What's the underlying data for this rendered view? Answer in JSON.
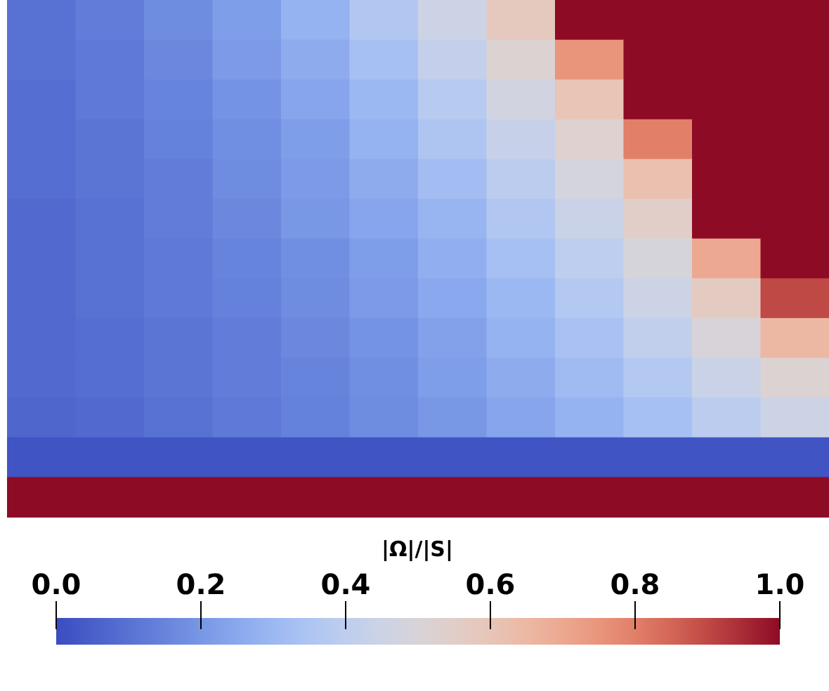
{
  "chart_data": {
    "type": "heatmap",
    "clabel": "|Ω|/|S|",
    "categories": [
      null,
      null,
      null,
      null,
      null,
      null,
      null,
      null,
      null,
      null,
      null,
      null
    ],
    "y_categories": [
      null,
      null,
      null,
      null,
      null,
      null,
      null,
      null,
      null,
      null,
      null,
      null,
      null
    ],
    "cells": [
      [
        0.1,
        0.13,
        0.17,
        0.22,
        0.28,
        0.36,
        0.45,
        0.58,
        1,
        1,
        1,
        1
      ],
      [
        0.1,
        0.12,
        0.16,
        0.21,
        0.26,
        0.33,
        0.42,
        0.52,
        0.75,
        1,
        1,
        1
      ],
      [
        0.09,
        0.12,
        0.15,
        0.19,
        0.24,
        0.3,
        0.38,
        0.47,
        0.6,
        1,
        1,
        1
      ],
      [
        0.09,
        0.11,
        0.14,
        0.18,
        0.22,
        0.28,
        0.35,
        0.43,
        0.53,
        0.8,
        1,
        1
      ],
      [
        0.09,
        0.11,
        0.13,
        0.17,
        0.21,
        0.26,
        0.32,
        0.39,
        0.48,
        0.62,
        1,
        1
      ],
      [
        0.08,
        0.1,
        0.13,
        0.16,
        0.2,
        0.24,
        0.29,
        0.36,
        0.44,
        0.55,
        1,
        1
      ],
      [
        0.08,
        0.1,
        0.12,
        0.15,
        0.18,
        0.22,
        0.27,
        0.33,
        0.4,
        0.49,
        0.7,
        1
      ],
      [
        0.08,
        0.1,
        0.12,
        0.14,
        0.17,
        0.21,
        0.25,
        0.3,
        0.37,
        0.45,
        0.57,
        0.9
      ],
      [
        0.08,
        0.09,
        0.11,
        0.13,
        0.16,
        0.19,
        0.23,
        0.28,
        0.34,
        0.41,
        0.5,
        0.65
      ],
      [
        0.08,
        0.09,
        0.11,
        0.13,
        0.15,
        0.18,
        0.22,
        0.26,
        0.31,
        0.37,
        0.44,
        0.52
      ],
      [
        0.07,
        0.08,
        0.1,
        0.12,
        0.14,
        0.17,
        0.2,
        0.24,
        0.28,
        0.33,
        0.39,
        0.45
      ],
      [
        0.02,
        0.02,
        0.02,
        0.02,
        0.02,
        0.02,
        0.02,
        0.02,
        0.02,
        0.02,
        0.02,
        0.02
      ],
      [
        1,
        1,
        1,
        1,
        1,
        1,
        1,
        1,
        1,
        1,
        1,
        1
      ]
    ],
    "clim": [
      0,
      1
    ],
    "cticks": [
      {
        "value": 0,
        "label": "0.0"
      },
      0.2,
      0.4,
      0.6,
      0.8,
      {
        "value": 1,
        "label": "1.0"
      }
    ]
  }
}
